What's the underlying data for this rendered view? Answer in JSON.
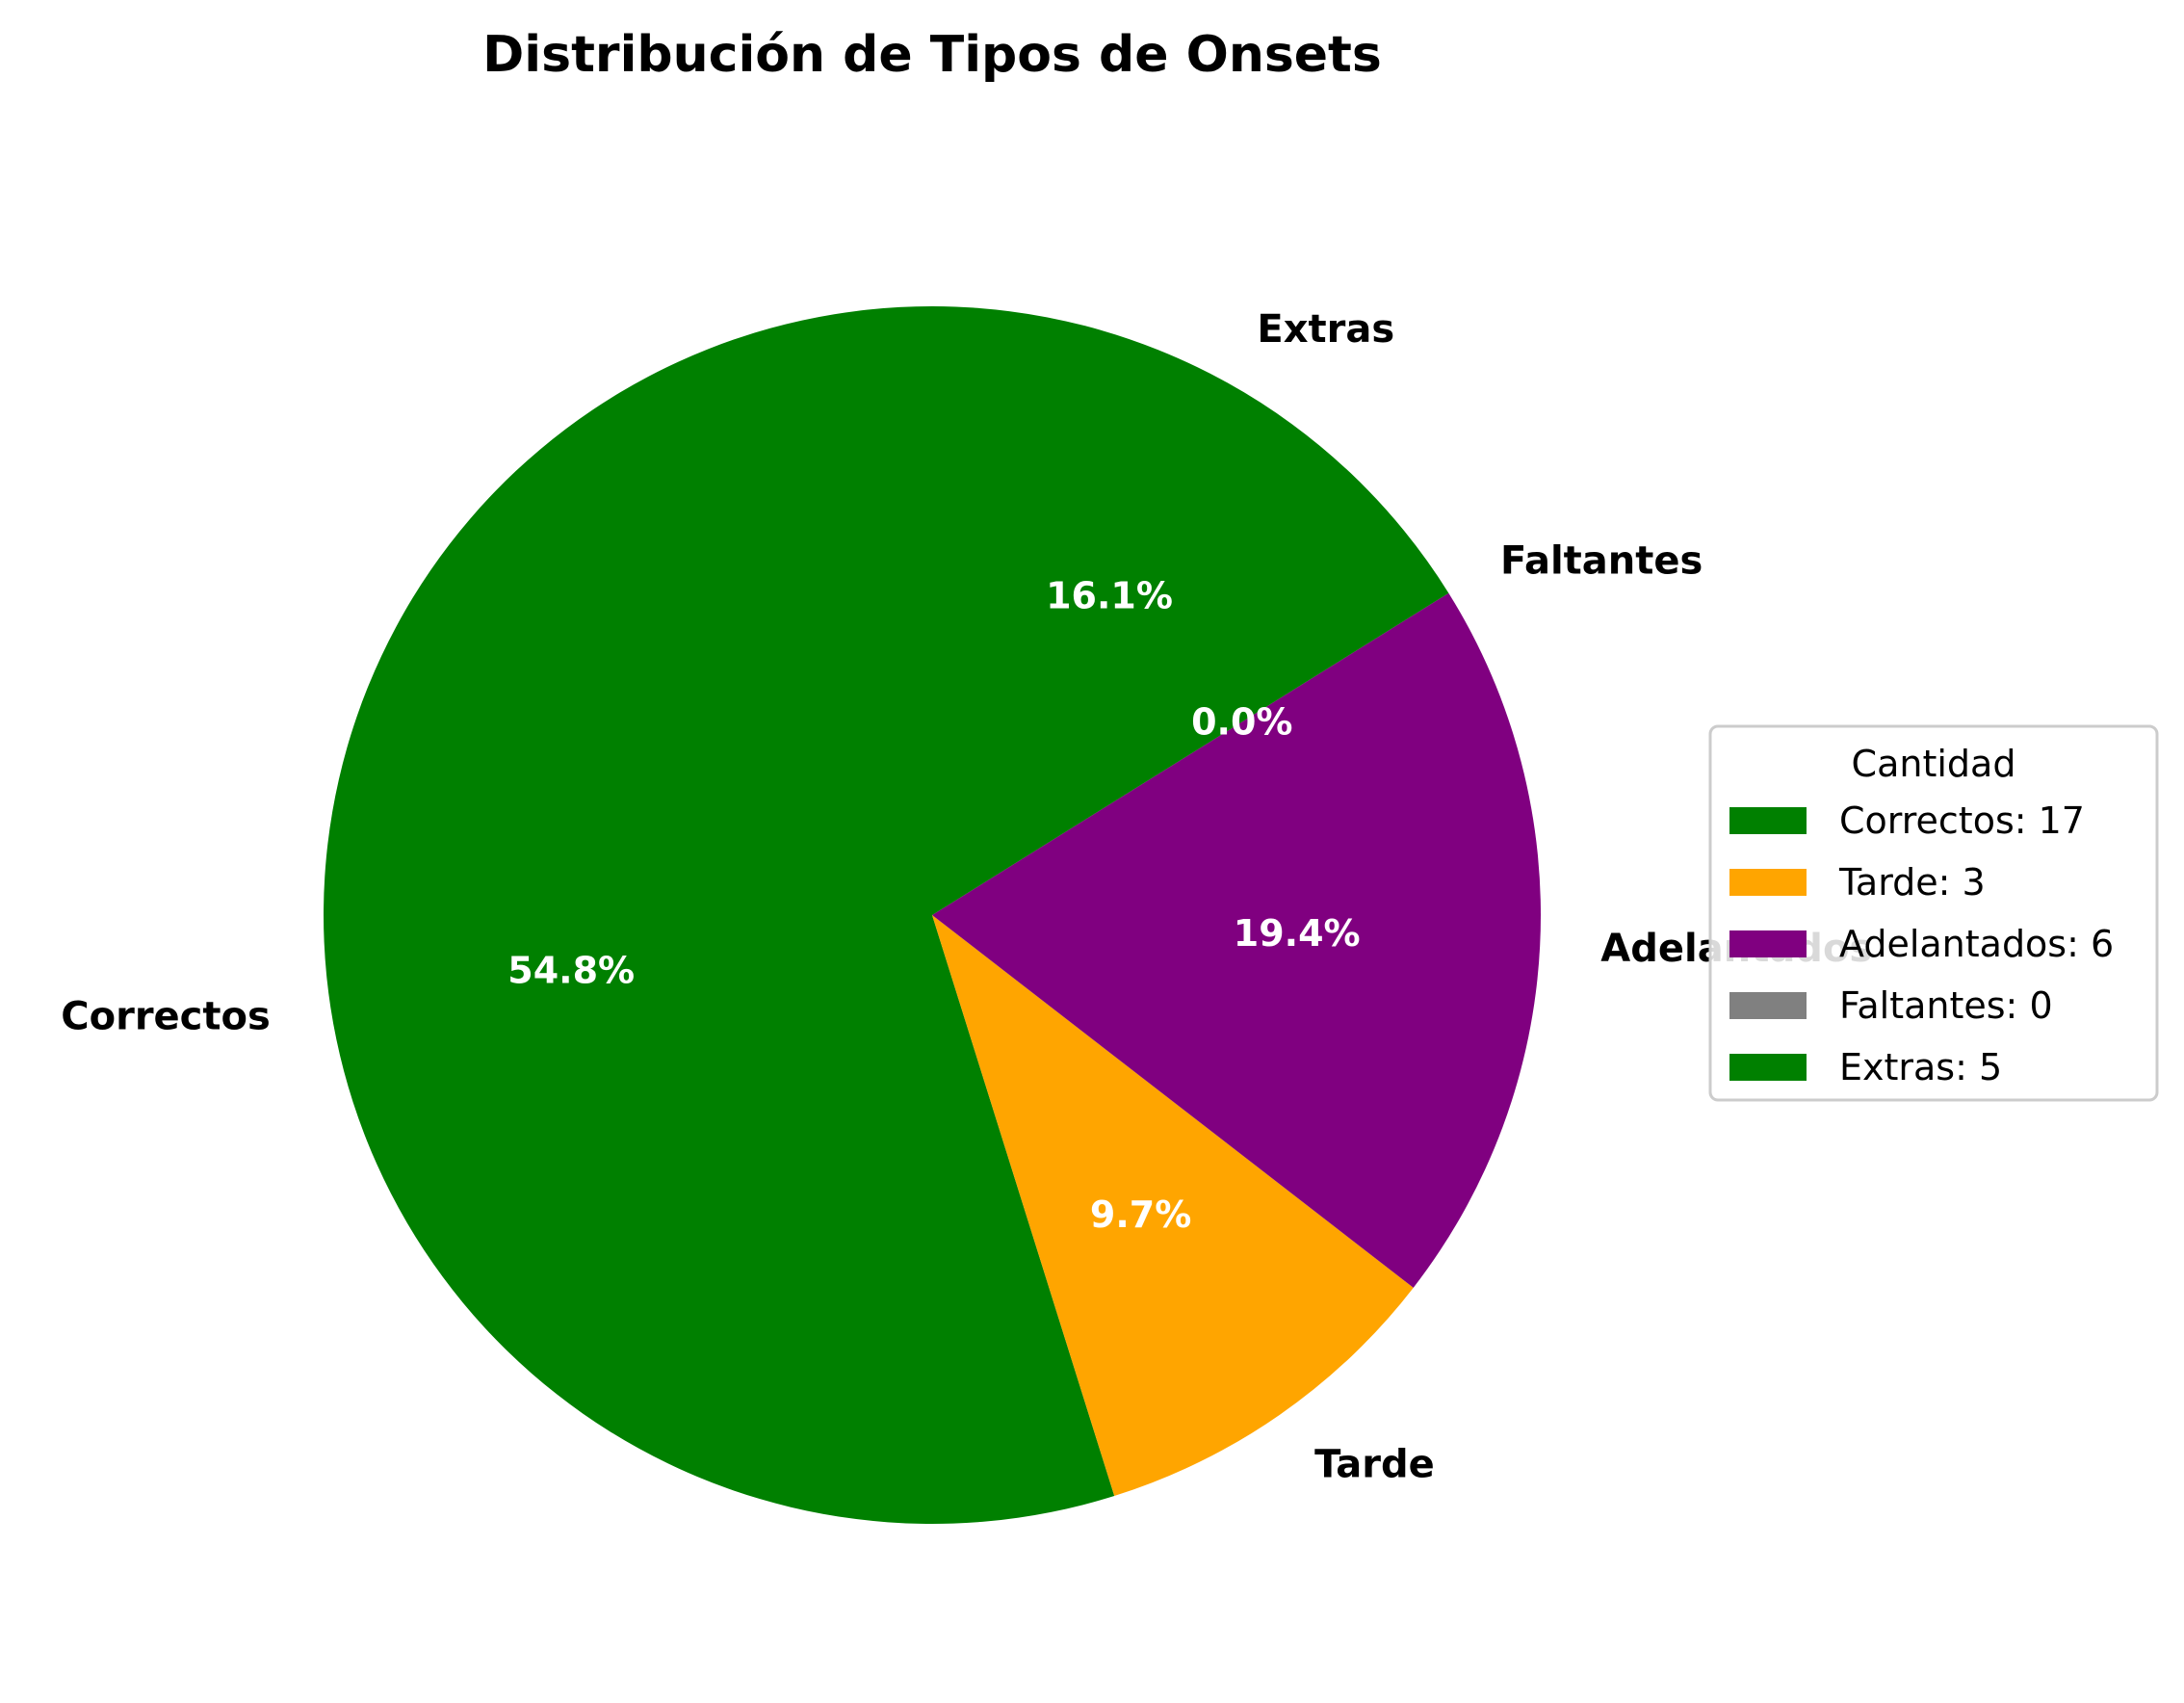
{
  "chart_data": {
    "type": "pie",
    "title": "Distribución de Tipos de Onsets",
    "categories": [
      "Correctos",
      "Tarde",
      "Adelantados",
      "Faltantes",
      "Extras"
    ],
    "values": [
      17,
      3,
      6,
      0,
      5
    ],
    "percent_labels": [
      "54.8%",
      "9.7%",
      "19.4%",
      "0.0%",
      "16.1%"
    ],
    "colors": [
      "#008000",
      "#FFA500",
      "#800080",
      "#808080",
      "#008000"
    ],
    "start_angle_deg": 90,
    "direction": "counterclockwise",
    "legend": {
      "title": "Cantidad",
      "placement": "center-right",
      "entries": [
        "Correctos: 17",
        "Tarde: 3",
        "Adelantados: 6",
        "Faltantes: 0",
        "Extras: 5"
      ]
    }
  }
}
